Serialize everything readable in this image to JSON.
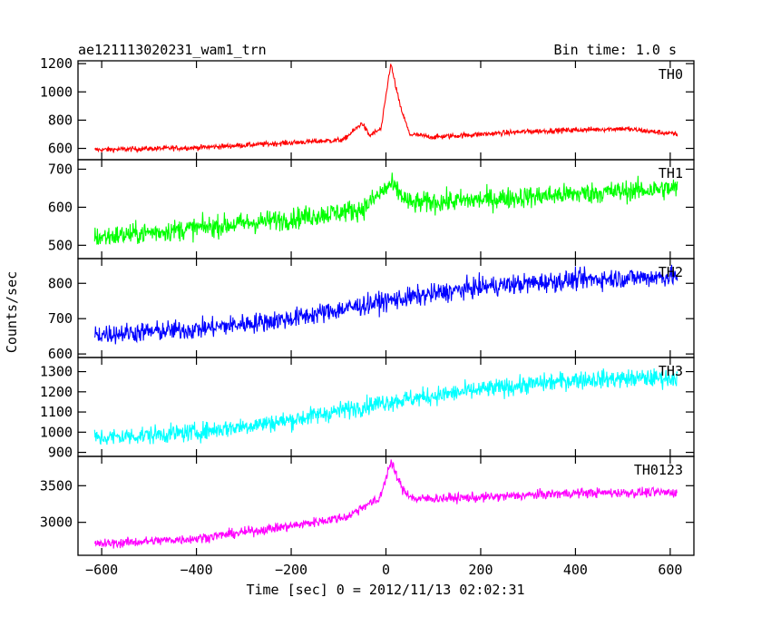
{
  "chart_data": {
    "type": "line",
    "title": "ae121113020231_wam1_trn",
    "bin_label": "Bin time: 1.0 s",
    "xlabel": "Time [sec] 0 = 2012/11/13 02:02:31",
    "ylabel": "Counts/sec",
    "xlim": [
      -650,
      650
    ],
    "x_ticks": [
      -600,
      -400,
      -200,
      0,
      200,
      400,
      600
    ],
    "x_range": [
      -615,
      615
    ],
    "grid": false,
    "panels": [
      {
        "name": "TH0",
        "color": "#ff0000",
        "ylim": [
          520,
          1220
        ],
        "y_ticks": [
          600,
          800,
          1000,
          1200
        ],
        "noise": 18,
        "profile": [
          [
            -615,
            590
          ],
          [
            -400,
            605
          ],
          [
            -200,
            640
          ],
          [
            -90,
            660
          ],
          [
            -50,
            780
          ],
          [
            -35,
            690
          ],
          [
            -10,
            740
          ],
          [
            10,
            1200
          ],
          [
            30,
            900
          ],
          [
            50,
            700
          ],
          [
            100,
            680
          ],
          [
            200,
            700
          ],
          [
            300,
            720
          ],
          [
            500,
            740
          ],
          [
            615,
            700
          ]
        ]
      },
      {
        "name": "TH1",
        "color": "#00ff00",
        "ylim": [
          465,
          725
        ],
        "y_ticks": [
          500,
          600,
          700
        ],
        "noise": 28,
        "profile": [
          [
            -615,
            520
          ],
          [
            -400,
            545
          ],
          [
            -200,
            570
          ],
          [
            -50,
            595
          ],
          [
            10,
            660
          ],
          [
            50,
            610
          ],
          [
            200,
            620
          ],
          [
            400,
            635
          ],
          [
            615,
            650
          ]
        ]
      },
      {
        "name": "TH2",
        "color": "#0000ff",
        "ylim": [
          590,
          870
        ],
        "y_ticks": [
          600,
          700,
          800
        ],
        "noise": 28,
        "profile": [
          [
            -615,
            655
          ],
          [
            -400,
            670
          ],
          [
            -200,
            700
          ],
          [
            0,
            750
          ],
          [
            200,
            790
          ],
          [
            400,
            810
          ],
          [
            615,
            820
          ]
        ]
      },
      {
        "name": "TH3",
        "color": "#00ffff",
        "ylim": [
          880,
          1370
        ],
        "y_ticks": [
          900,
          1000,
          1100,
          1200,
          1300
        ],
        "noise": 45,
        "profile": [
          [
            -615,
            970
          ],
          [
            -400,
            1000
          ],
          [
            -200,
            1060
          ],
          [
            0,
            1150
          ],
          [
            200,
            1210
          ],
          [
            400,
            1260
          ],
          [
            615,
            1270
          ]
        ]
      },
      {
        "name": "TH0123",
        "color": "#ff00ff",
        "ylim": [
          2550,
          3900
        ],
        "y_ticks": [
          3000,
          3500
        ],
        "noise": 65,
        "profile": [
          [
            -615,
            2700
          ],
          [
            -400,
            2780
          ],
          [
            -200,
            2950
          ],
          [
            -80,
            3080
          ],
          [
            -40,
            3250
          ],
          [
            -15,
            3300
          ],
          [
            10,
            3820
          ],
          [
            35,
            3450
          ],
          [
            60,
            3320
          ],
          [
            200,
            3340
          ],
          [
            400,
            3400
          ],
          [
            615,
            3410
          ]
        ]
      }
    ]
  }
}
